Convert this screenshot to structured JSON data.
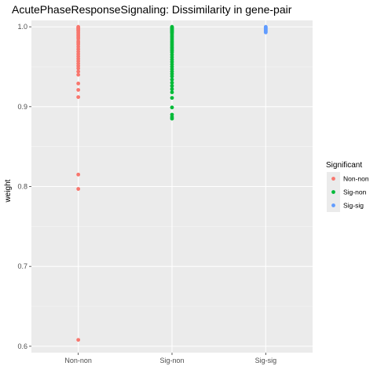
{
  "chart_data": {
    "type": "scatter",
    "title": "AcutePhaseResponseSignaling: Dissimilarity in gene-pair",
    "xlabel": "",
    "ylabel": "weight",
    "categories": [
      "Non-non",
      "Sig-non",
      "Sig-sig"
    ],
    "ylim": [
      0.592,
      1.008
    ],
    "yticks": [
      0.6,
      0.7,
      0.8,
      0.9,
      1.0
    ],
    "ytick_labels": [
      "0.6",
      "0.7",
      "0.8",
      "0.9",
      "1.0"
    ],
    "legend": {
      "title": "Significant",
      "position": "right",
      "entries": [
        "Non-non",
        "Sig-non",
        "Sig-sig"
      ]
    },
    "colors": {
      "Non-non": "#F8766D",
      "Sig-non": "#00BA38",
      "Sig-sig": "#619CFF",
      "panel": "#EBEBEB",
      "grid_major": "#FFFFFF",
      "grid_minor": "#F5F5F5"
    },
    "series": [
      {
        "name": "Non-non",
        "x": "Non-non",
        "values": [
          1.0,
          0.999,
          0.998,
          0.997,
          0.996,
          0.995,
          0.993,
          0.991,
          0.989,
          0.987,
          0.985,
          0.982,
          0.98,
          0.978,
          0.975,
          0.972,
          0.969,
          0.966,
          0.963,
          0.96,
          0.957,
          0.954,
          0.951,
          0.948,
          0.944,
          0.94,
          0.929,
          0.921,
          0.912,
          0.815,
          0.797,
          0.608
        ]
      },
      {
        "name": "Sig-non",
        "x": "Sig-non",
        "values": [
          1.0,
          0.999,
          0.998,
          0.997,
          0.996,
          0.995,
          0.994,
          0.993,
          0.992,
          0.99,
          0.988,
          0.986,
          0.984,
          0.982,
          0.98,
          0.978,
          0.976,
          0.974,
          0.972,
          0.97,
          0.968,
          0.965,
          0.962,
          0.959,
          0.956,
          0.953,
          0.95,
          0.947,
          0.944,
          0.941,
          0.938,
          0.934,
          0.93,
          0.926,
          0.922,
          0.918,
          0.911,
          0.899,
          0.89,
          0.887,
          0.885
        ]
      },
      {
        "name": "Sig-sig",
        "x": "Sig-sig",
        "values": [
          1.0,
          0.999,
          0.998,
          0.997,
          0.996,
          0.995,
          0.994,
          0.993
        ]
      }
    ]
  }
}
